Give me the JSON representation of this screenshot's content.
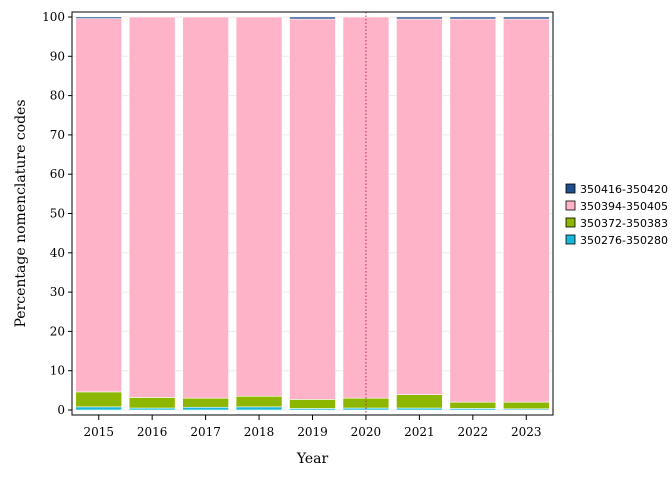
{
  "chart_data": {
    "type": "bar",
    "stacked": true,
    "percent": true,
    "xlabel": "Year",
    "ylabel": "Percentage nomenclature codes",
    "categories": [
      "2015",
      "2016",
      "2017",
      "2018",
      "2019",
      "2020",
      "2021",
      "2022",
      "2023"
    ],
    "ylim": [
      0,
      100
    ],
    "yticks": [
      0,
      10,
      20,
      30,
      40,
      50,
      60,
      70,
      80,
      90,
      100
    ],
    "grid": "horizontal",
    "legend_position": "right",
    "reference_line": {
      "x": "2020",
      "style": "dotted",
      "color": "#b03060"
    },
    "series": [
      {
        "name": "350276-350280",
        "color": "#17b8d8",
        "values": [
          0.8,
          0.5,
          0.7,
          0.8,
          0.4,
          0.5,
          0.5,
          0.4,
          0.3
        ]
      },
      {
        "name": "350372-350383",
        "color": "#8db600",
        "values": [
          3.8,
          2.7,
          2.3,
          2.7,
          2.3,
          2.5,
          3.4,
          1.6,
          1.7
        ]
      },
      {
        "name": "350394-350405",
        "color": "#ffb3c8",
        "values": [
          95.0,
          96.8,
          97.0,
          96.5,
          96.8,
          97.0,
          95.6,
          97.5,
          97.5
        ]
      },
      {
        "name": "350416-350420",
        "color": "#1f4e8c",
        "values": [
          0.4,
          0.0,
          0.0,
          0.0,
          0.5,
          0.0,
          0.5,
          0.5,
          0.5
        ]
      }
    ],
    "legend_order": [
      "350416-350420",
      "350394-350405",
      "350372-350383",
      "350276-350280"
    ]
  }
}
